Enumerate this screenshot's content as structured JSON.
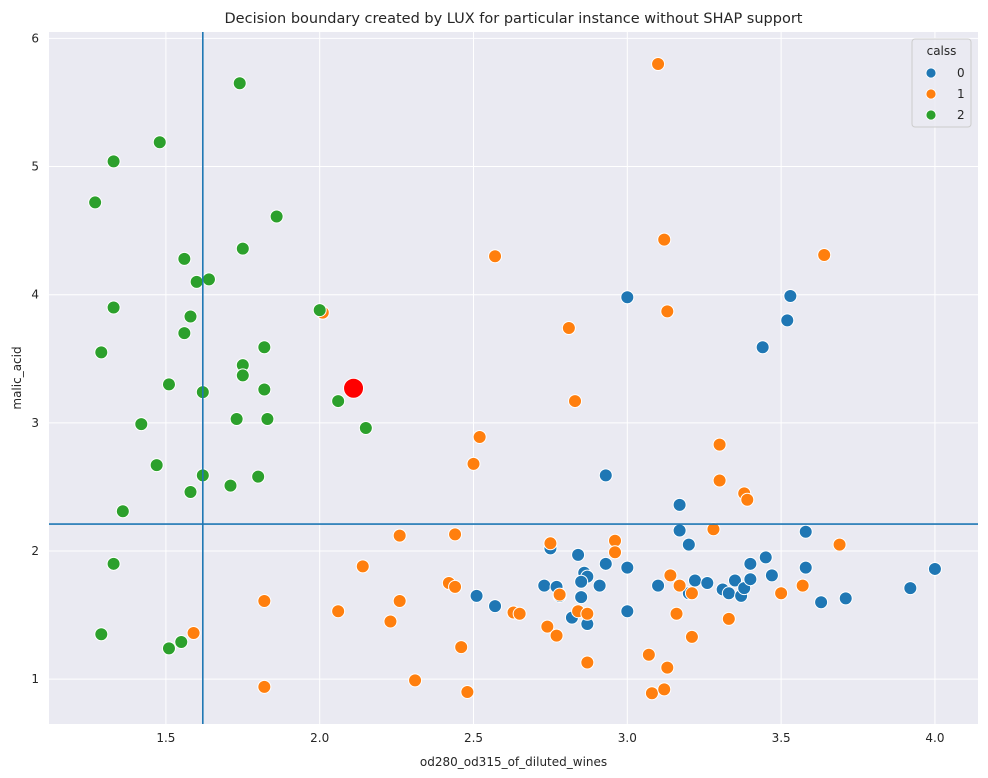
{
  "chart_data": {
    "type": "scatter",
    "title": "Decision boundary created by LUX for particular instance without SHAP support",
    "xlabel": "od280_od315_of_diluted_wines",
    "ylabel": "malic_acid",
    "xlim": [
      1.12,
      4.14
    ],
    "ylim": [
      0.65,
      6.05
    ],
    "xticks": [
      1.5,
      2.0,
      2.5,
      3.0,
      3.5,
      4.0
    ],
    "xtick_labels": [
      "1.5",
      "2.0",
      "2.5",
      "3.0",
      "3.5",
      "4.0"
    ],
    "yticks": [
      1,
      2,
      3,
      4,
      5,
      6
    ],
    "ytick_labels": [
      "1",
      "2",
      "3",
      "4",
      "5",
      "6"
    ],
    "grid": true,
    "background": "#eaeaf2",
    "legend": {
      "title": "calss",
      "placement": "top-right",
      "entries": [
        {
          "label": "0",
          "color": "#1f77b4"
        },
        {
          "label": "1",
          "color": "#ff7f0e"
        },
        {
          "label": "2",
          "color": "#2ca02c"
        }
      ]
    },
    "series": [
      {
        "name": "0",
        "color": "#1f77b4",
        "points": [
          [
            3.0,
            3.98
          ],
          [
            3.53,
            3.99
          ],
          [
            3.52,
            3.8
          ],
          [
            3.44,
            3.59
          ],
          [
            2.93,
            2.59
          ],
          [
            3.17,
            2.36
          ],
          [
            3.17,
            2.16
          ],
          [
            3.2,
            2.05
          ],
          [
            3.58,
            2.15
          ],
          [
            2.75,
            2.02
          ],
          [
            2.84,
            1.97
          ],
          [
            2.93,
            1.9
          ],
          [
            3.0,
            1.87
          ],
          [
            2.86,
            1.83
          ],
          [
            2.87,
            1.8
          ],
          [
            2.85,
            1.76
          ],
          [
            2.91,
            1.73
          ],
          [
            2.73,
            1.73
          ],
          [
            2.77,
            1.72
          ],
          [
            2.78,
            1.65
          ],
          [
            2.85,
            1.64
          ],
          [
            2.51,
            1.65
          ],
          [
            2.57,
            1.57
          ],
          [
            2.87,
            1.43
          ],
          [
            2.82,
            1.48
          ],
          [
            3.0,
            1.53
          ],
          [
            3.1,
            1.73
          ],
          [
            3.2,
            1.67
          ],
          [
            3.22,
            1.77
          ],
          [
            3.26,
            1.75
          ],
          [
            3.31,
            1.7
          ],
          [
            3.33,
            1.67
          ],
          [
            3.35,
            1.77
          ],
          [
            3.37,
            1.65
          ],
          [
            3.38,
            1.71
          ],
          [
            3.4,
            1.78
          ],
          [
            3.4,
            1.9
          ],
          [
            3.45,
            1.95
          ],
          [
            3.47,
            1.81
          ],
          [
            3.58,
            1.87
          ],
          [
            3.63,
            1.6
          ],
          [
            3.71,
            1.63
          ],
          [
            3.92,
            1.71
          ],
          [
            4.0,
            1.86
          ]
        ]
      },
      {
        "name": "1",
        "color": "#ff7f0e",
        "points": [
          [
            3.1,
            5.8
          ],
          [
            3.12,
            4.43
          ],
          [
            2.57,
            4.3
          ],
          [
            3.64,
            4.31
          ],
          [
            3.13,
            3.87
          ],
          [
            2.01,
            3.86
          ],
          [
            2.81,
            3.74
          ],
          [
            2.83,
            3.17
          ],
          [
            2.52,
            2.89
          ],
          [
            2.5,
            2.68
          ],
          [
            3.3,
            2.83
          ],
          [
            3.3,
            2.55
          ],
          [
            3.38,
            2.45
          ],
          [
            3.39,
            2.4
          ],
          [
            3.28,
            2.17
          ],
          [
            3.69,
            2.05
          ],
          [
            2.26,
            2.12
          ],
          [
            2.44,
            2.13
          ],
          [
            2.75,
            2.06
          ],
          [
            2.96,
            2.08
          ],
          [
            2.96,
            1.99
          ],
          [
            2.14,
            1.88
          ],
          [
            2.42,
            1.75
          ],
          [
            2.44,
            1.72
          ],
          [
            3.14,
            1.81
          ],
          [
            3.17,
            1.73
          ],
          [
            3.57,
            1.73
          ],
          [
            3.21,
            1.67
          ],
          [
            3.5,
            1.67
          ],
          [
            2.78,
            1.66
          ],
          [
            1.82,
            1.61
          ],
          [
            2.26,
            1.61
          ],
          [
            2.06,
            1.53
          ],
          [
            2.63,
            1.52
          ],
          [
            2.65,
            1.51
          ],
          [
            2.84,
            1.53
          ],
          [
            2.87,
            1.51
          ],
          [
            3.16,
            1.51
          ],
          [
            2.23,
            1.45
          ],
          [
            2.74,
            1.41
          ],
          [
            3.33,
            1.47
          ],
          [
            1.59,
            1.36
          ],
          [
            2.77,
            1.34
          ],
          [
            3.21,
            1.33
          ],
          [
            2.46,
            1.25
          ],
          [
            3.07,
            1.19
          ],
          [
            2.87,
            1.13
          ],
          [
            3.13,
            1.09
          ],
          [
            2.31,
            0.99
          ],
          [
            1.82,
            0.94
          ],
          [
            2.48,
            0.9
          ],
          [
            3.08,
            0.89
          ],
          [
            3.12,
            0.92
          ]
        ]
      },
      {
        "name": "2",
        "color": "#2ca02c",
        "points": [
          [
            1.74,
            5.65
          ],
          [
            1.48,
            5.19
          ],
          [
            1.33,
            5.04
          ],
          [
            1.27,
            4.72
          ],
          [
            1.86,
            4.61
          ],
          [
            1.75,
            4.36
          ],
          [
            1.56,
            4.28
          ],
          [
            1.64,
            4.12
          ],
          [
            1.6,
            4.1
          ],
          [
            1.33,
            3.9
          ],
          [
            2.0,
            3.88
          ],
          [
            1.58,
            3.83
          ],
          [
            1.56,
            3.7
          ],
          [
            1.82,
            3.59
          ],
          [
            1.29,
            3.55
          ],
          [
            1.75,
            3.45
          ],
          [
            1.75,
            3.37
          ],
          [
            1.51,
            3.3
          ],
          [
            1.82,
            3.26
          ],
          [
            1.62,
            3.24
          ],
          [
            2.06,
            3.17
          ],
          [
            1.73,
            3.03
          ],
          [
            1.83,
            3.03
          ],
          [
            1.42,
            2.99
          ],
          [
            2.15,
            2.96
          ],
          [
            1.47,
            2.67
          ],
          [
            1.62,
            2.59
          ],
          [
            1.8,
            2.58
          ],
          [
            1.71,
            2.51
          ],
          [
            1.58,
            2.46
          ],
          [
            1.36,
            2.31
          ],
          [
            1.33,
            1.9
          ],
          [
            1.29,
            1.35
          ],
          [
            1.55,
            1.29
          ],
          [
            1.51,
            1.24
          ]
        ]
      }
    ],
    "highlight": {
      "point": [
        2.11,
        3.27
      ],
      "color": "#ff0000"
    },
    "reference_lines": {
      "vertical_x": 1.62,
      "horizontal_y": 2.21,
      "color": "#1f77b4"
    }
  }
}
